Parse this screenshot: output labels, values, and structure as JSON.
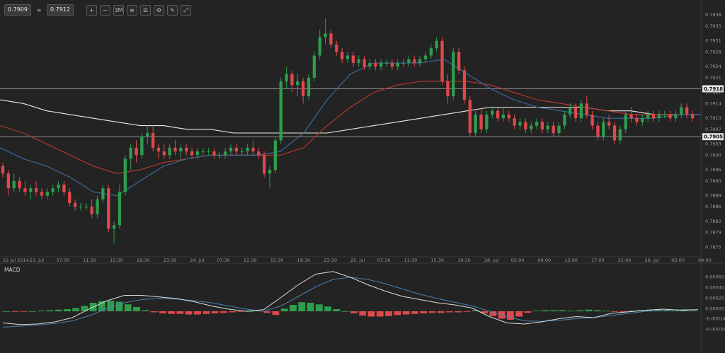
{
  "toolbar": {
    "bid": "0.7909",
    "ask": "0.7912",
    "buttons": [
      {
        "name": "zoom-in-icon",
        "glyph": "+"
      },
      {
        "name": "zoom-out-icon",
        "glyph": "−"
      },
      {
        "name": "timeframe-button",
        "glyph": "3M"
      },
      {
        "name": "indicators-icon",
        "glyph": "≡"
      },
      {
        "name": "list-icon",
        "glyph": "☰"
      },
      {
        "name": "settings-icon",
        "glyph": "⚙"
      },
      {
        "name": "draw-icon",
        "glyph": "✎"
      },
      {
        "name": "fullscreen-icon",
        "glyph": "⤢"
      }
    ]
  },
  "chart_data": [
    {
      "type": "candlestick",
      "panel": "price",
      "y_ticks": [
        "0.7938",
        "0.7935",
        "0.7931",
        "0.7928",
        "0.7924",
        "0.7921",
        "0.7917",
        "0.7914",
        "0.7910",
        "0.7907",
        "0.7903",
        "0.7900",
        "0.7896",
        "0.7893",
        "0.7889",
        "0.7886",
        "0.7882",
        "0.7879",
        "0.7875"
      ],
      "ylim": [
        0.7873,
        0.7939
      ],
      "x_labels": [
        "22 Jul 2014",
        "23. Jul",
        "07:30",
        "11:30",
        "15:30",
        "19:30",
        "23:30",
        "24. Jul",
        "07:30",
        "11:30",
        "15:30",
        "19:30",
        "23:30",
        "25. Jul",
        "07:30",
        "11:30",
        "15:30",
        "19:30",
        "28. Jul",
        "05:00",
        "09:00",
        "13:00",
        "17:00",
        "21:00",
        "29. Jul",
        "05:00",
        "09:00"
      ],
      "horizontal_levels": [
        {
          "label": "0.7918",
          "value": 0.7918
        },
        {
          "label": "0.7905",
          "value": 0.7905
        }
      ],
      "colors": {
        "up": "#2e9d4e",
        "down": "#e0484b"
      },
      "candles": [
        [
          0.7897,
          0.7898,
          0.7894,
          0.7895
        ],
        [
          0.7895,
          0.7896,
          0.7889,
          0.7891
        ],
        [
          0.7891,
          0.7895,
          0.789,
          0.7893
        ],
        [
          0.7893,
          0.7894,
          0.789,
          0.7891
        ],
        [
          0.7891,
          0.7893,
          0.7889,
          0.789
        ],
        [
          0.789,
          0.7892,
          0.7888,
          0.7891
        ],
        [
          0.7891,
          0.7893,
          0.7889,
          0.789
        ],
        [
          0.789,
          0.7891,
          0.7888,
          0.7889
        ],
        [
          0.7889,
          0.7891,
          0.7888,
          0.789
        ],
        [
          0.789,
          0.7892,
          0.7889,
          0.7891
        ],
        [
          0.7891,
          0.7893,
          0.789,
          0.7892
        ],
        [
          0.7892,
          0.7893,
          0.7889,
          0.789
        ],
        [
          0.789,
          0.7891,
          0.7886,
          0.7887
        ],
        [
          0.7887,
          0.7888,
          0.7885,
          0.7886
        ],
        [
          0.7886,
          0.7887,
          0.7885,
          0.7886
        ],
        [
          0.7886,
          0.7887,
          0.7885,
          0.7886
        ],
        [
          0.7886,
          0.7888,
          0.7883,
          0.7884
        ],
        [
          0.7884,
          0.7889,
          0.7883,
          0.7888
        ],
        [
          0.7888,
          0.7892,
          0.7887,
          0.7891
        ],
        [
          0.7891,
          0.7892,
          0.7879,
          0.788
        ],
        [
          0.788,
          0.7882,
          0.7876,
          0.7881
        ],
        [
          0.7881,
          0.7892,
          0.788,
          0.789
        ],
        [
          0.789,
          0.79,
          0.7889,
          0.7899
        ],
        [
          0.7899,
          0.7903,
          0.7896,
          0.7902
        ],
        [
          0.7902,
          0.7904,
          0.7898,
          0.79
        ],
        [
          0.79,
          0.7906,
          0.7899,
          0.7905
        ],
        [
          0.7905,
          0.7908,
          0.7903,
          0.7906
        ],
        [
          0.7906,
          0.7908,
          0.7901,
          0.7902
        ],
        [
          0.7902,
          0.7903,
          0.7899,
          0.7901
        ],
        [
          0.7901,
          0.7903,
          0.7899,
          0.79
        ],
        [
          0.79,
          0.7903,
          0.7899,
          0.7902
        ],
        [
          0.7902,
          0.7904,
          0.79,
          0.7901
        ],
        [
          0.7901,
          0.7903,
          0.7899,
          0.7902
        ],
        [
          0.7902,
          0.7903,
          0.79,
          0.7901
        ],
        [
          0.7901,
          0.7902,
          0.7899,
          0.79
        ],
        [
          0.79,
          0.7902,
          0.7899,
          0.7901
        ],
        [
          0.7901,
          0.7902,
          0.79,
          0.7901
        ],
        [
          0.7901,
          0.7902,
          0.79,
          0.7901
        ],
        [
          0.7901,
          0.7902,
          0.7899,
          0.79
        ],
        [
          0.79,
          0.7901,
          0.7899,
          0.79
        ],
        [
          0.79,
          0.7902,
          0.7899,
          0.7901
        ],
        [
          0.7901,
          0.7903,
          0.79,
          0.7902
        ],
        [
          0.7902,
          0.7903,
          0.79,
          0.7901
        ],
        [
          0.7901,
          0.7902,
          0.79,
          0.7901
        ],
        [
          0.7901,
          0.7903,
          0.79,
          0.7902
        ],
        [
          0.7902,
          0.7904,
          0.79,
          0.7901
        ],
        [
          0.7901,
          0.7902,
          0.7899,
          0.79
        ],
        [
          0.79,
          0.7901,
          0.7894,
          0.7895
        ],
        [
          0.7895,
          0.7897,
          0.7891,
          0.7896
        ],
        [
          0.7896,
          0.7905,
          0.7895,
          0.7904
        ],
        [
          0.7904,
          0.7921,
          0.7903,
          0.792
        ],
        [
          0.792,
          0.7924,
          0.7918,
          0.7922
        ],
        [
          0.7922,
          0.7923,
          0.7917,
          0.7919
        ],
        [
          0.7919,
          0.7922,
          0.7916,
          0.792
        ],
        [
          0.792,
          0.7921,
          0.7914,
          0.7916
        ],
        [
          0.7916,
          0.7922,
          0.7915,
          0.7921
        ],
        [
          0.7921,
          0.7928,
          0.792,
          0.7927
        ],
        [
          0.7927,
          0.7934,
          0.7926,
          0.7932
        ],
        [
          0.7932,
          0.7937,
          0.793,
          0.7933
        ],
        [
          0.7933,
          0.7934,
          0.7929,
          0.793
        ],
        [
          0.793,
          0.7931,
          0.7927,
          0.7928
        ],
        [
          0.7928,
          0.7929,
          0.7925,
          0.7926
        ],
        [
          0.7926,
          0.7928,
          0.7925,
          0.7927
        ],
        [
          0.7927,
          0.7928,
          0.7924,
          0.7925
        ],
        [
          0.7925,
          0.7927,
          0.7924,
          0.7926
        ],
        [
          0.7926,
          0.7927,
          0.7923,
          0.7924
        ],
        [
          0.7924,
          0.7926,
          0.7923,
          0.7925
        ],
        [
          0.7925,
          0.7926,
          0.7923,
          0.7924
        ],
        [
          0.7924,
          0.7926,
          0.7923,
          0.7925
        ],
        [
          0.7925,
          0.7926,
          0.7924,
          0.7925
        ],
        [
          0.7925,
          0.7926,
          0.7923,
          0.7924
        ],
        [
          0.7924,
          0.7926,
          0.7923,
          0.7925
        ],
        [
          0.7925,
          0.7926,
          0.7924,
          0.7925
        ],
        [
          0.7925,
          0.7927,
          0.7924,
          0.7926
        ],
        [
          0.7926,
          0.7927,
          0.7924,
          0.7925
        ],
        [
          0.7925,
          0.7927,
          0.7924,
          0.7926
        ],
        [
          0.7926,
          0.7928,
          0.7925,
          0.7927
        ],
        [
          0.7927,
          0.793,
          0.7926,
          0.7929
        ],
        [
          0.7929,
          0.7932,
          0.7928,
          0.7931
        ],
        [
          0.7931,
          0.7932,
          0.7919,
          0.792
        ],
        [
          0.792,
          0.7922,
          0.7914,
          0.7916
        ],
        [
          0.7916,
          0.7929,
          0.7915,
          0.7928
        ],
        [
          0.7928,
          0.7929,
          0.7922,
          0.7923
        ],
        [
          0.7923,
          0.7924,
          0.7914,
          0.7915
        ],
        [
          0.7915,
          0.7916,
          0.7905,
          0.7906
        ],
        [
          0.7906,
          0.7912,
          0.7905,
          0.7911
        ],
        [
          0.7911,
          0.7913,
          0.7906,
          0.7907
        ],
        [
          0.7907,
          0.7912,
          0.7906,
          0.7911
        ],
        [
          0.7911,
          0.7913,
          0.791,
          0.7912
        ],
        [
          0.7912,
          0.7913,
          0.7909,
          0.791
        ],
        [
          0.791,
          0.7913,
          0.7909,
          0.7911
        ],
        [
          0.7911,
          0.7912,
          0.7909,
          0.791
        ],
        [
          0.791,
          0.7911,
          0.7907,
          0.7908
        ],
        [
          0.7908,
          0.791,
          0.7907,
          0.7909
        ],
        [
          0.7909,
          0.791,
          0.7906,
          0.7907
        ],
        [
          0.7907,
          0.7909,
          0.7906,
          0.7908
        ],
        [
          0.7908,
          0.791,
          0.7907,
          0.7909
        ],
        [
          0.7909,
          0.791,
          0.7906,
          0.7907
        ],
        [
          0.7907,
          0.7909,
          0.7906,
          0.7908
        ],
        [
          0.7908,
          0.7909,
          0.7905,
          0.7906
        ],
        [
          0.7906,
          0.7909,
          0.7905,
          0.7908
        ],
        [
          0.7908,
          0.7912,
          0.7907,
          0.7911
        ],
        [
          0.7911,
          0.7914,
          0.791,
          0.7913
        ],
        [
          0.7913,
          0.7914,
          0.7909,
          0.791
        ],
        [
          0.791,
          0.7915,
          0.7909,
          0.7914
        ],
        [
          0.7914,
          0.7916,
          0.791,
          0.7911
        ],
        [
          0.7911,
          0.7912,
          0.7907,
          0.7908
        ],
        [
          0.7908,
          0.7909,
          0.7904,
          0.7905
        ],
        [
          0.7905,
          0.791,
          0.7904,
          0.7909
        ],
        [
          0.7909,
          0.7911,
          0.7907,
          0.7908
        ],
        [
          0.7908,
          0.7909,
          0.7903,
          0.7904
        ],
        [
          0.7904,
          0.7908,
          0.7903,
          0.7907
        ],
        [
          0.7907,
          0.7912,
          0.7906,
          0.7911
        ],
        [
          0.7911,
          0.7913,
          0.7909,
          0.791
        ],
        [
          0.791,
          0.7911,
          0.7908,
          0.7909
        ],
        [
          0.7909,
          0.7911,
          0.7908,
          0.791
        ],
        [
          0.791,
          0.7912,
          0.7909,
          0.7911
        ],
        [
          0.7911,
          0.7912,
          0.7909,
          0.791
        ],
        [
          0.791,
          0.7912,
          0.7909,
          0.7911
        ],
        [
          0.7911,
          0.7912,
          0.791,
          0.7911
        ],
        [
          0.7911,
          0.7912,
          0.7909,
          0.791
        ],
        [
          0.791,
          0.7912,
          0.7909,
          0.7911
        ],
        [
          0.7911,
          0.7914,
          0.791,
          0.7913
        ],
        [
          0.7913,
          0.7914,
          0.791,
          0.7911
        ],
        [
          0.7911,
          0.7912,
          0.7909,
          0.791
        ]
      ],
      "moving_averages": [
        {
          "color": "#e8e8e8",
          "values": [
            0.7915,
            0.7914,
            0.7912,
            0.7911,
            0.791,
            0.7909,
            0.7908,
            0.7908,
            0.7907,
            0.7907,
            0.7906,
            0.7906,
            0.7906,
            0.7906,
            0.7906,
            0.7907,
            0.7908,
            0.7909,
            0.791,
            0.7911,
            0.7912,
            0.7913,
            0.7913,
            0.7913,
            0.7913,
            0.7913,
            0.7912,
            0.7912,
            0.7911,
            0.7911,
            0.7911
          ]
        },
        {
          "color": "#c0392b",
          "values": [
            0.7908,
            0.7906,
            0.7903,
            0.79,
            0.7897,
            0.7895,
            0.7896,
            0.7898,
            0.7899,
            0.79,
            0.79,
            0.79,
            0.79,
            0.7902,
            0.7908,
            0.7913,
            0.7917,
            0.7919,
            0.792,
            0.792,
            0.792,
            0.7919,
            0.7917,
            0.7915,
            0.7914,
            0.7913,
            0.7912,
            0.7911,
            0.7911,
            0.7911,
            0.7911
          ]
        },
        {
          "color": "#3c6fa5",
          "values": [
            0.7902,
            0.7899,
            0.7897,
            0.7894,
            0.789,
            0.7889,
            0.7893,
            0.7897,
            0.7899,
            0.79,
            0.79,
            0.79,
            0.7901,
            0.7906,
            0.7915,
            0.7922,
            0.7925,
            0.7925,
            0.7925,
            0.7926,
            0.7922,
            0.7918,
            0.7915,
            0.7913,
            0.7912,
            0.7911,
            0.791,
            0.791,
            0.791,
            0.7911,
            0.7911
          ]
        }
      ]
    },
    {
      "type": "macd",
      "panel": "indicator",
      "title": "MACD",
      "y_ticks": [
        "0.00065",
        "0.00045",
        "0.00025",
        "0.00005",
        "-0.00014",
        "-0.00034"
      ],
      "ylim": [
        -0.0004,
        0.0008
      ],
      "colors": {
        "positive": "#2e9d4e",
        "negative": "#e0484b",
        "macd": "#dcdcdc",
        "signal": "#4a7fb0"
      },
      "histogram": [
        0.0,
        -1e-05,
        -1e-05,
        0.0,
        1e-05,
        2e-05,
        3e-05,
        4e-05,
        6e-05,
        0.0001,
        0.00016,
        0.00019,
        0.0002,
        0.00018,
        0.00013,
        8e-05,
        2e-05,
        -2e-05,
        -4e-05,
        -5e-05,
        -5e-05,
        -6e-05,
        -6e-05,
        -5e-05,
        -4e-05,
        -3e-05,
        -2e-05,
        -1e-05,
        0.0,
        1e-05,
        -3e-05,
        -7e-05,
        5e-05,
        0.00012,
        0.00017,
        0.00016,
        0.00013,
        9e-05,
        4e-05,
        0.0,
        -4e-05,
        -8e-05,
        -0.0001,
        -0.0001,
        -9e-05,
        -7e-05,
        -6e-05,
        -5e-05,
        -4e-05,
        -3e-05,
        -3e-05,
        -2e-05,
        -2e-05,
        -1e-05,
        2e-05,
        -4e-05,
        -9e-05,
        -0.00014,
        -0.00016,
        -0.0001,
        -3e-05,
        1e-05,
        2e-05,
        2e-05,
        2e-05,
        1e-05,
        2e-05,
        3e-05,
        2e-05,
        1e-05,
        -1e-05,
        -2e-05,
        1e-05,
        2e-05,
        3e-05,
        3e-05,
        2e-05,
        1e-05,
        2e-05,
        1e-05
      ],
      "macd_line": [
        -0.00022,
        -0.00025,
        -0.00024,
        -0.0002,
        -0.00012,
        5e-05,
        0.0002,
        0.0003,
        0.0003,
        0.00027,
        0.00024,
        0.00018,
        0.0001,
        4e-05,
        0.0,
        3e-05,
        0.00026,
        0.0005,
        0.0007,
        0.00075,
        0.00064,
        0.0005,
        0.00038,
        0.00028,
        0.00022,
        0.00016,
        0.00012,
        6e-05,
        -0.0001,
        -0.00022,
        -0.00024,
        -0.0002,
        -0.00014,
        -0.0001,
        -0.00012,
        -4e-05,
        -1e-05,
        2e-05,
        4e-05,
        2e-05,
        3e-05
      ],
      "signal_line": [
        -0.0003,
        -0.00028,
        -0.00026,
        -0.00023,
        -0.00018,
        -8e-05,
        5e-05,
        0.00016,
        0.00022,
        0.00024,
        0.00023,
        0.0002,
        0.00016,
        0.0001,
        4e-05,
        0.0,
        0.0001,
        0.00028,
        0.00046,
        0.0006,
        0.00064,
        0.0006,
        0.00052,
        0.00042,
        0.00032,
        0.00024,
        0.00017,
        0.0001,
        0.0,
        -0.0001,
        -0.00018,
        -0.00019,
        -0.00017,
        -0.00014,
        -0.00012,
        -8e-05,
        -4e-05,
        0.0,
        2e-05,
        3e-05,
        3e-05
      ]
    }
  ]
}
